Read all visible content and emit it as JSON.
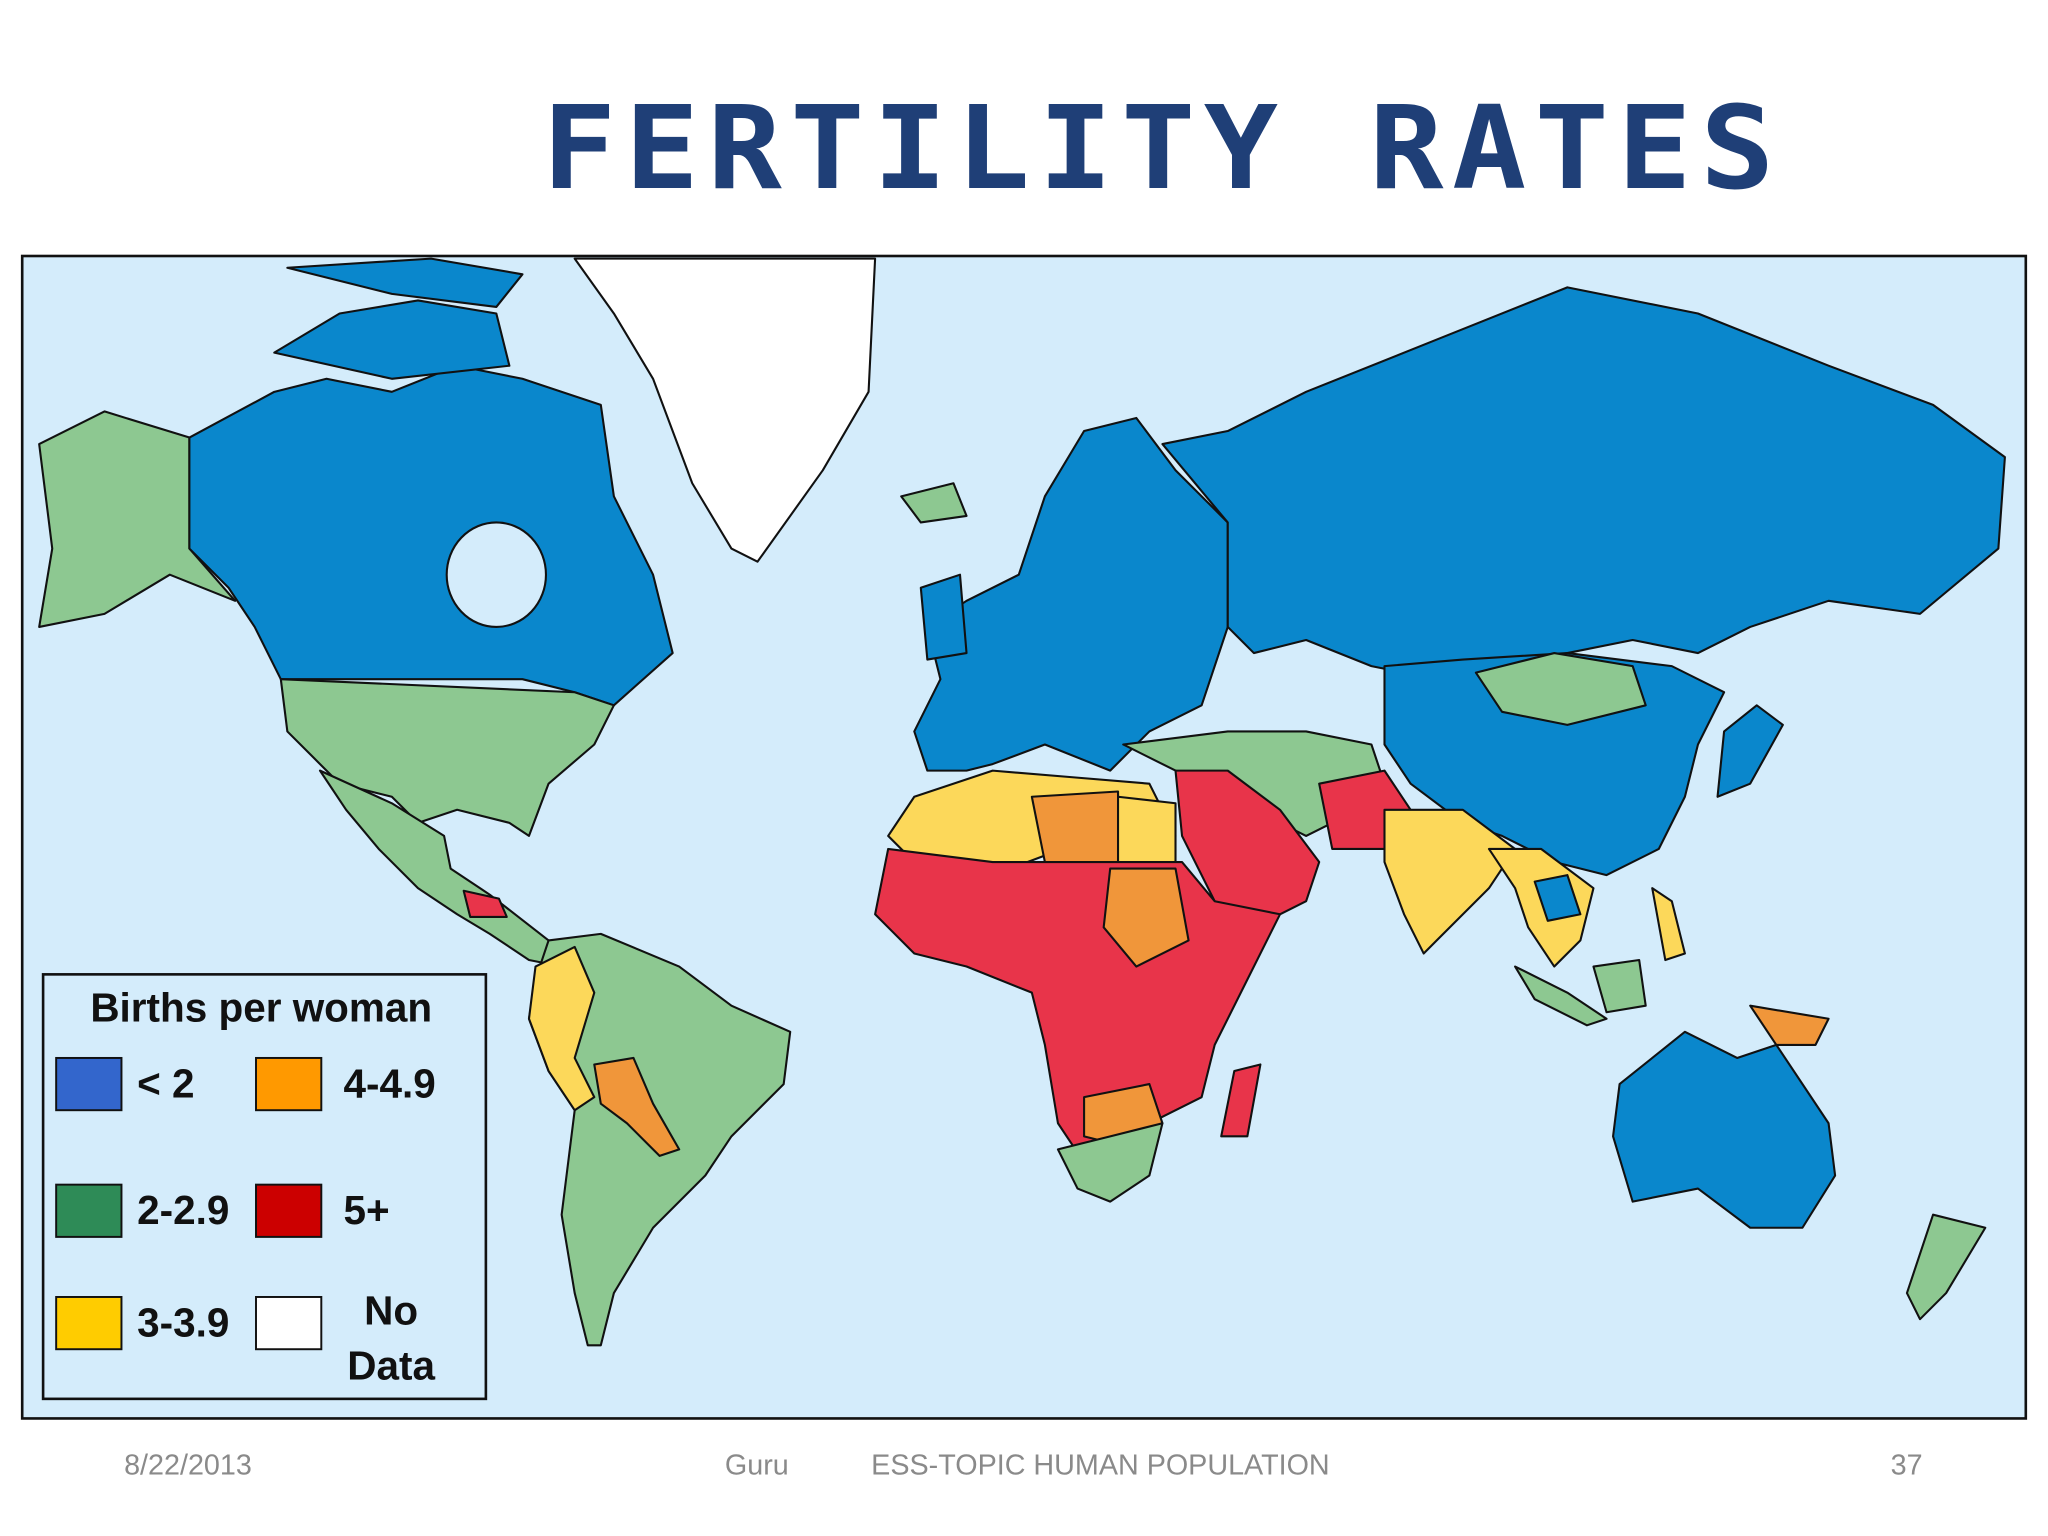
{
  "title": "FERTILITY RATES",
  "legend": {
    "title": "Births per woman",
    "items": [
      {
        "label": "< 2",
        "color": "#3366cc"
      },
      {
        "label": "2-2.9",
        "color": "#2e8b57"
      },
      {
        "label": "3-3.9",
        "color": "#ffcc00"
      },
      {
        "label": "4-4.9",
        "color": "#ff9900"
      },
      {
        "label": "5+",
        "color": "#cc0000"
      },
      {
        "label": "No Data",
        "color": "#ffffff"
      }
    ]
  },
  "footer": {
    "date": "8/22/2013",
    "author": "Guru",
    "topic": "ESS-TOPIC HUMAN POPULATION",
    "page": "37"
  }
}
